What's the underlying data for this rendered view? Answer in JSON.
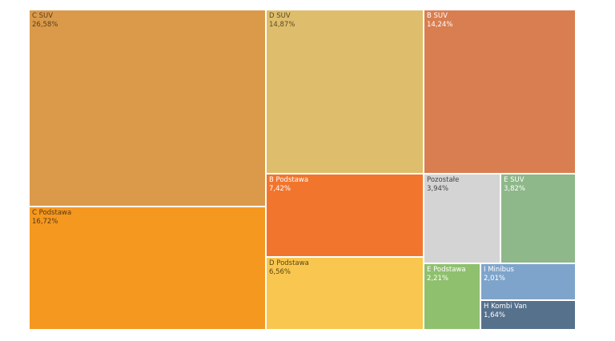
{
  "chart_data": {
    "type": "treemap",
    "title": "",
    "items": [
      {
        "name": "C SUV",
        "value": 26.58,
        "label": "26,58%",
        "color": "#DA9A4A",
        "text_color": "#5a3e1c"
      },
      {
        "name": "C Podstawa",
        "value": 16.72,
        "label": "16,72%",
        "color": "#F5981F",
        "text_color": "#5a3814"
      },
      {
        "name": "D SUV",
        "value": 14.87,
        "label": "14,87%",
        "color": "#DEBE6C",
        "text_color": "#5a4a22"
      },
      {
        "name": "B SUV",
        "value": 14.24,
        "label": "14,24%",
        "color": "#D97E50",
        "text_color": "#ffffff"
      },
      {
        "name": "B Podstawa",
        "value": 7.42,
        "label": "7,42%",
        "color": "#F2752D",
        "text_color": "#ffffff"
      },
      {
        "name": "D Podstawa",
        "value": 6.56,
        "label": "6,56%",
        "color": "#F9C74F",
        "text_color": "#5a4514"
      },
      {
        "name": "Pozostałe",
        "value": 3.94,
        "label": "3,94%",
        "color": "#D4D4D4",
        "text_color": "#444444"
      },
      {
        "name": "E SUV",
        "value": 3.82,
        "label": "3,82%",
        "color": "#8EB78A",
        "text_color": "#ffffff"
      },
      {
        "name": "E Podstawa",
        "value": 2.21,
        "label": "2,21%",
        "color": "#8FC06D",
        "text_color": "#ffffff"
      },
      {
        "name": "I Minibus",
        "value": 2.01,
        "label": "2,01%",
        "color": "#7FA4CB",
        "text_color": "#ffffff"
      },
      {
        "name": "H Kombi Van",
        "value": 1.64,
        "label": "1,64%",
        "color": "#56718C",
        "text_color": "#ffffff"
      }
    ]
  }
}
